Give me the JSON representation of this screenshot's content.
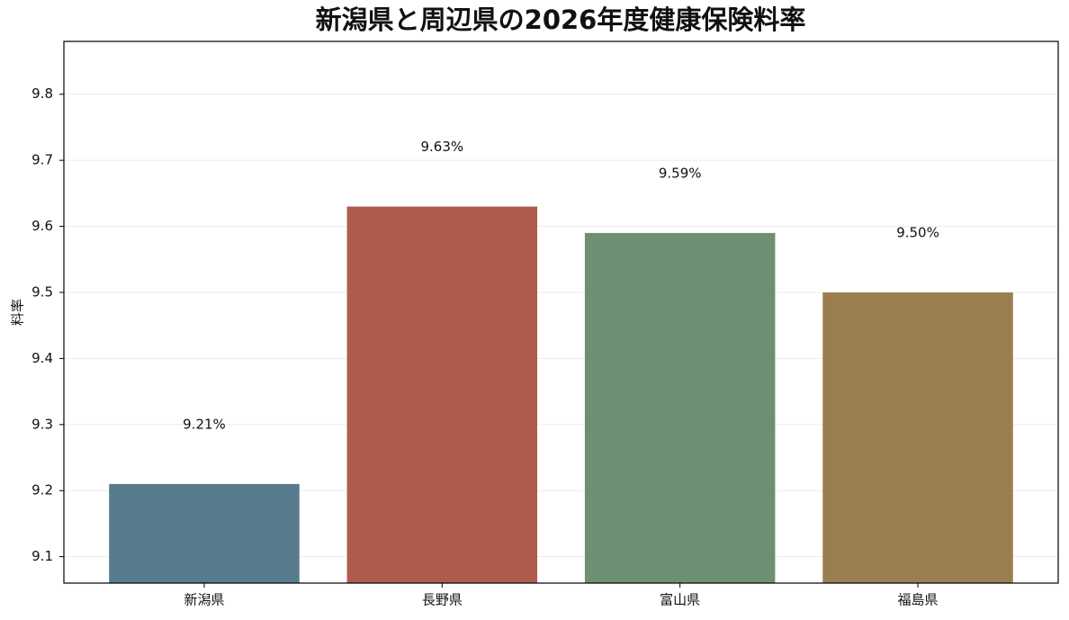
{
  "chart_data": {
    "type": "bar",
    "title": "新潟県と周辺県の2026年度健康保険料率",
    "y_label": "料率",
    "categories": [
      "新潟県",
      "長野県",
      "富山県",
      "福島県"
    ],
    "values": [
      9.21,
      9.63,
      9.59,
      9.5
    ],
    "value_labels": [
      "9.21%",
      "9.63%",
      "9.59%",
      "9.50%"
    ],
    "colors": [
      "#577b8d",
      "#b05c4c",
      "#6f8f72",
      "#9b7e50"
    ],
    "ylim": [
      9.06,
      9.88
    ],
    "yticks": [
      9.1,
      9.2,
      9.3,
      9.4,
      9.5,
      9.6,
      9.7,
      9.8
    ],
    "grid": true
  }
}
